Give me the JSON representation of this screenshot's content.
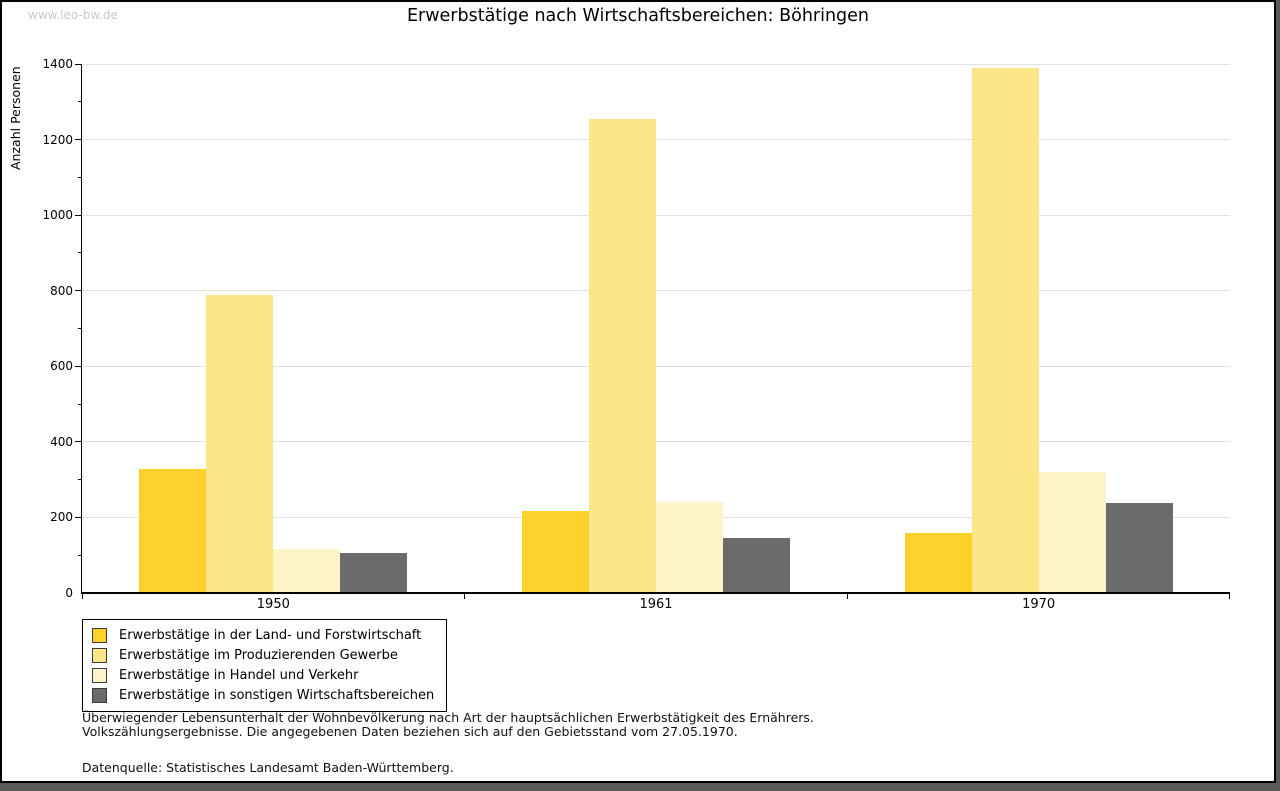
{
  "watermark": "www.leo-bw.de",
  "chart_data": {
    "type": "bar",
    "title": "Erwerbstätige nach Wirtschaftsbereichen: Böhringen",
    "ylabel": "Anzahl Personen",
    "xlabel": "",
    "categories": [
      "1950",
      "1961",
      "1970"
    ],
    "series": [
      {
        "name": "Erwerbstätige in der Land- und Forstwirtschaft",
        "color": "#FCD12B",
        "values": [
          328,
          217,
          160
        ]
      },
      {
        "name": "Erwerbstätige im Produzierenden Gewerbe",
        "color": "#FCE687",
        "values": [
          788,
          1255,
          1390
        ]
      },
      {
        "name": "Erwerbstätige in Handel und Verkehr",
        "color": "#FCF3C8",
        "values": [
          116,
          240,
          320
        ]
      },
      {
        "name": "Erwerbstätige in sonstigen Wirtschaftsbereichen",
        "color": "#6B6B6B",
        "values": [
          106,
          146,
          237
        ]
      }
    ],
    "ylim": [
      0,
      1400
    ],
    "y_major_step": 200,
    "y_minor_step": 100,
    "grid": true,
    "legend_position": "bottom-left",
    "gridline_color": "#e2e2e2"
  },
  "footnotes": {
    "line1": "Überwiegender Lebensunterhalt der Wohnbevölkerung nach Art der hauptsächlichen Erwerbstätigkeit des Ernährers.",
    "line2": "Volkszählungsergebnisse. Die angegebenen Daten beziehen sich auf den Gebietsstand vom 27.05.1970.",
    "source": "Datenquelle: Statistisches Landesamt Baden-Württemberg."
  }
}
